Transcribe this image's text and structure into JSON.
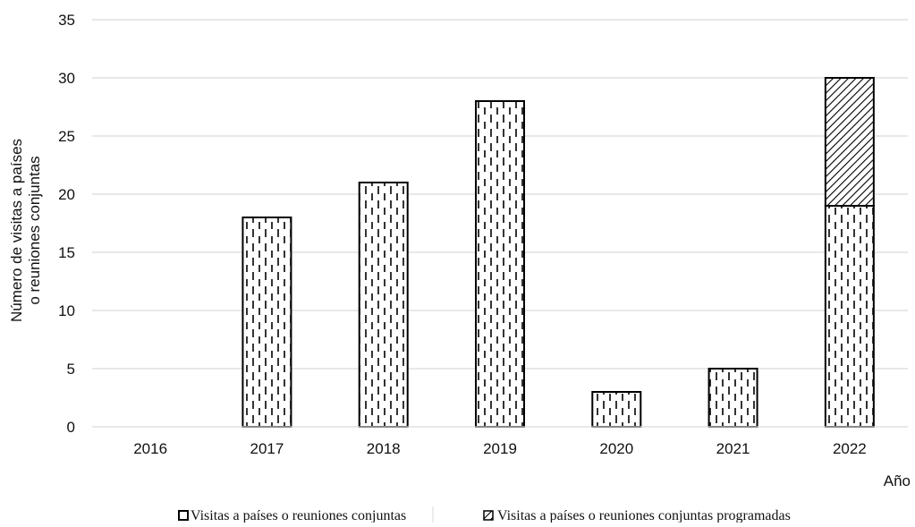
{
  "chart_data": {
    "type": "bar",
    "stacked": true,
    "categories": [
      "2016",
      "2017",
      "2018",
      "2019",
      "2020",
      "2021",
      "2022"
    ],
    "series": [
      {
        "name": "Visitas a países o reuniones conjuntas",
        "values": [
          0,
          18,
          21,
          28,
          3,
          5,
          19
        ],
        "pattern": "dashed-vertical"
      },
      {
        "name": "Visitas a países o reuniones conjuntas programadas",
        "values": [
          0,
          0,
          0,
          0,
          0,
          0,
          11
        ],
        "pattern": "diagonal-hatch"
      }
    ],
    "xlabel": "Año",
    "ylabel_lines": [
      "Número de visitas a países",
      "o reuniones conjuntas"
    ],
    "ylim": [
      0,
      35
    ],
    "yticks": [
      0,
      5,
      10,
      15,
      20,
      25,
      30,
      35
    ],
    "grid": true,
    "legend_position": "bottom",
    "colors": {
      "bar_fill": "#ffffff",
      "bar_stroke": "#000000",
      "grid": "#d9d9d9"
    }
  }
}
